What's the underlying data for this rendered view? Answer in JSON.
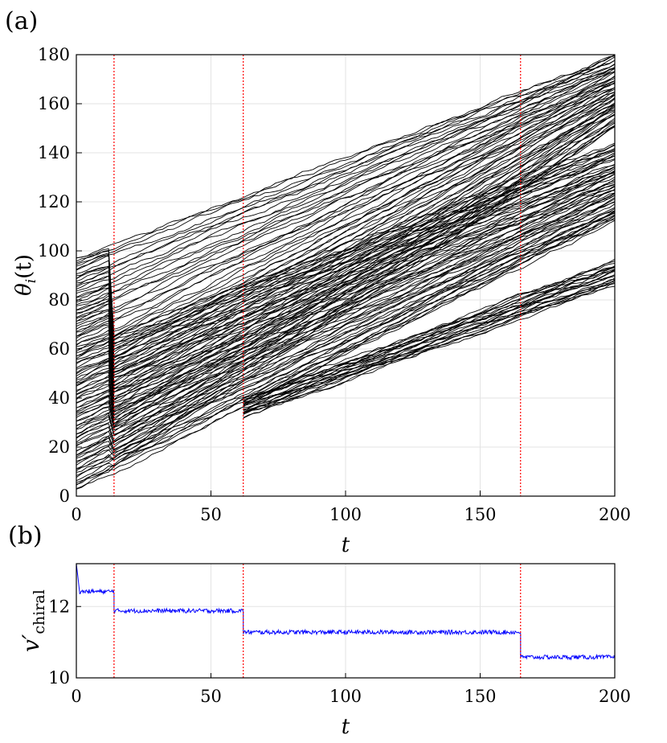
{
  "chart_data": [
    {
      "panel": "(a)",
      "type": "line",
      "description_series": "many oscillator phase trajectories drifting upward, forming bands that split apart at transitions",
      "xlabel": "t",
      "ylabel": "θ_i(t)",
      "ylabel_main": "θ",
      "ylabel_sub": "i",
      "ylabel_tail": "(t)",
      "xlim": [
        0,
        200
      ],
      "ylim": [
        0,
        180
      ],
      "xticks": [
        "0",
        "50",
        "100",
        "150",
        "200"
      ],
      "yticks": [
        "0",
        "20",
        "40",
        "60",
        "80",
        "100",
        "120",
        "140",
        "160",
        "180"
      ],
      "grid": true,
      "line_color": "#000000",
      "transition_color": "#ff0000",
      "transition_times": [
        14,
        62,
        165
      ],
      "bands": [
        {
          "name": "upper",
          "lower_start": [
            0,
            0
          ],
          "lower_end": [
            200,
            150
          ],
          "upper_start": [
            0,
            98
          ],
          "upper_end": [
            200,
            180
          ],
          "t_start": 0,
          "t_end": 200
        },
        {
          "name": "middle",
          "lower_start": [
            0,
            2
          ],
          "lower_end": [
            200,
            112
          ],
          "upper_start": [
            14,
            67
          ],
          "upper_end": [
            200,
            144
          ],
          "t_start": 0,
          "t_end": 200
        },
        {
          "name": "lower",
          "lower_start": [
            62,
            32
          ],
          "lower_end": [
            200,
            86
          ],
          "upper_start": [
            62,
            40
          ],
          "upper_end": [
            200,
            96
          ],
          "t_start": 62,
          "t_end": 200
        }
      ]
    },
    {
      "panel": "(b)",
      "type": "line",
      "xlabel": "t",
      "ylabel": "v'_chiral",
      "ylabel_main": "v′",
      "ylabel_sub": "chiral",
      "xlim": [
        0,
        200
      ],
      "ylim": [
        10,
        13.2
      ],
      "xticks": [
        "0",
        "50",
        "100",
        "150",
        "200"
      ],
      "yticks": [
        "10",
        "12"
      ],
      "grid": true,
      "line_color": "#0000ff",
      "transition_color": "#ff0000",
      "transition_times": [
        14,
        62,
        165
      ],
      "segments": [
        {
          "t_start": 0,
          "t_end": 14,
          "value": 12.42
        },
        {
          "t_start": 14,
          "t_end": 62,
          "value": 11.88
        },
        {
          "t_start": 62,
          "t_end": 165,
          "value": 11.28
        },
        {
          "t_start": 165,
          "t_end": 200,
          "value": 10.58
        }
      ],
      "initial_value": 13.2
    }
  ]
}
